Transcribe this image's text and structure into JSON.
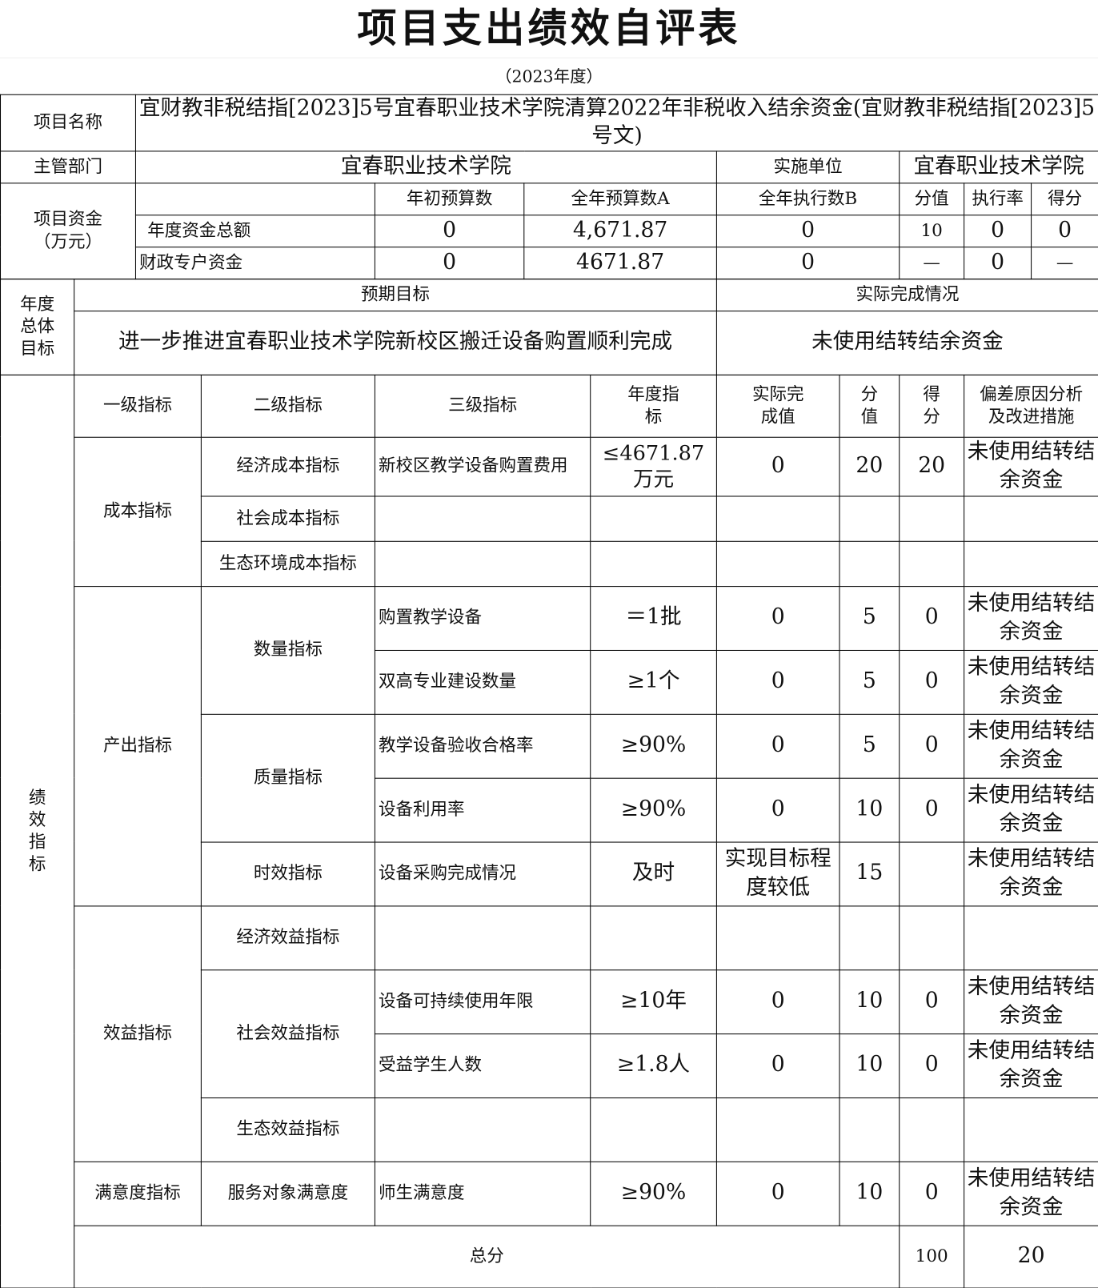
{
  "title": "项目支出绩效自评表",
  "year": "（2023年度）",
  "project_name_label": "项目名称",
  "project_name": "宜财教非税结指[2023]5号宜春职业技术学院清算2022年非税收入结余资金(宜财教非税结指[2023]5号文)",
  "dept_label": "主管部门",
  "dept": "宜春职业技术学院",
  "impl_label": "实施单位",
  "impl": "宜春职业技术学院",
  "funds": {
    "label": "项目资金（万元）",
    "headers": [
      "年初预算数",
      "全年预算数A",
      "全年执行数B",
      "分值",
      "执行率",
      "得分"
    ],
    "rows": [
      {
        "name": "年度资金总额",
        "values": [
          "0",
          "4,671.87",
          "0",
          "10",
          "0",
          "0"
        ]
      },
      {
        "name": "财政专户资金",
        "values": [
          "0",
          "4671.87",
          "0",
          "—",
          "0",
          "—"
        ]
      }
    ]
  },
  "goal": {
    "label": "年度总体目标",
    "expected_label": "预期目标",
    "actual_label": "实际完成情况",
    "expected": "进一步推进宜春职业技术学院新校区搬迁设备购置顺利完成",
    "actual": "未使用结转结余资金"
  },
  "indicators": {
    "label": "绩效指标",
    "headers": [
      "一级指标",
      "二级指标",
      "三级指标",
      "年度指标",
      "实际完成值",
      "分值",
      "得分",
      "偏差原因分析及改进措施"
    ],
    "l1": [
      "成本指标",
      "产出指标",
      "效益指标",
      "满意度指标"
    ],
    "l2": [
      "经济成本指标",
      "社会成本指标",
      "生态环境成本指标",
      "数量指标",
      "质量指标",
      "时效指标",
      "经济效益指标",
      "社会效益指标",
      "生态效益指标",
      "服务对象满意度"
    ],
    "rows": [
      [
        "新校区教学设备购置费用",
        "≤4671.87万元",
        "0",
        "20",
        "20",
        "未使用结转结余资金"
      ],
      [
        "购置教学设备",
        "＝1批",
        "0",
        "5",
        "0",
        "未使用结转结余资金"
      ],
      [
        "双高专业建设数量",
        "≥1个",
        "0",
        "5",
        "0",
        "未使用结转结余资金"
      ],
      [
        "教学设备验收合格率",
        "≥90%",
        "0",
        "5",
        "0",
        "未使用结转结余资金"
      ],
      [
        "设备利用率",
        "≥90%",
        "0",
        "10",
        "0",
        "未使用结转结余资金"
      ],
      [
        "设备采购完成情况",
        "及时",
        "实现目标程度较低",
        "15",
        "",
        "未使用结转结余资金"
      ],
      [
        "设备可持续使用年限",
        "≥10年",
        "0",
        "10",
        "0",
        "未使用结转结余资金"
      ],
      [
        "受益学生人数",
        "≥1.8人",
        "0",
        "10",
        "0",
        "未使用结转结余资金"
      ],
      [
        "师生满意度",
        "≥90%",
        "0",
        "10",
        "0",
        "未使用结转结余资金"
      ]
    ]
  },
  "total": {
    "label": "总分",
    "score_value": "100",
    "score": "20"
  }
}
